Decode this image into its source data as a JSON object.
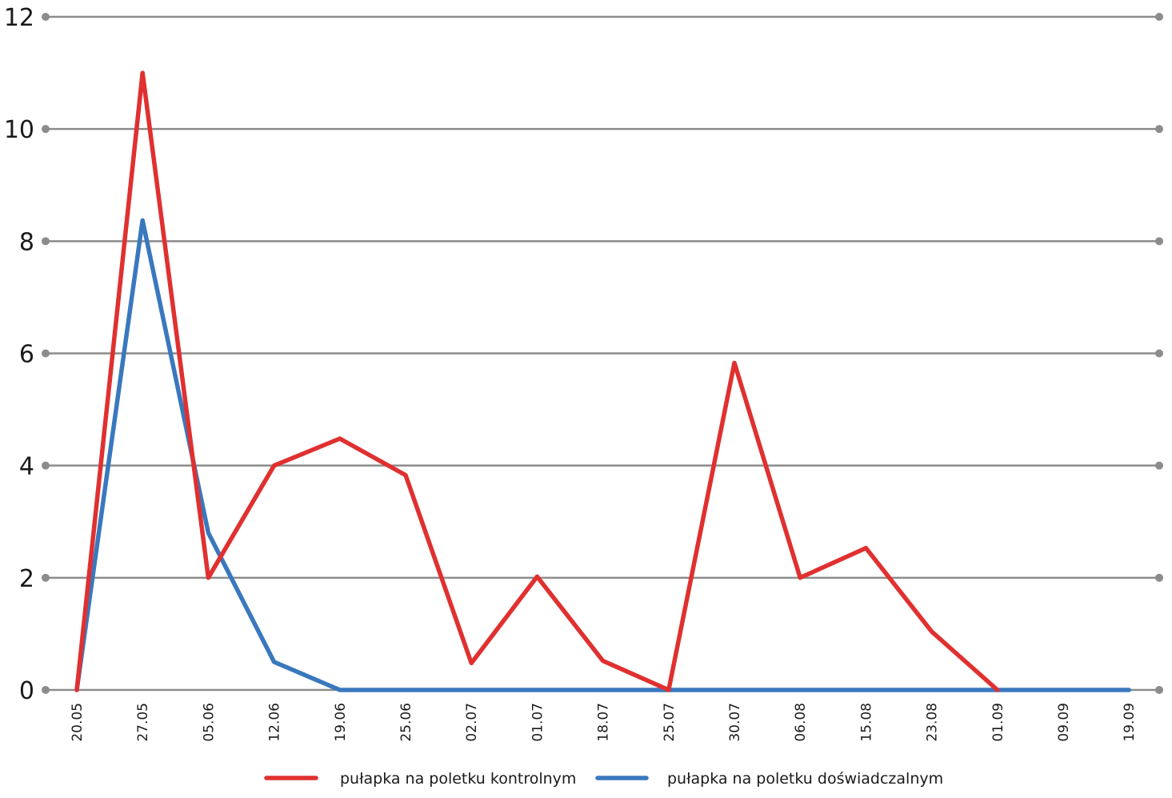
{
  "chart_data": {
    "type": "line",
    "title": "",
    "xlabel": "",
    "ylabel": "",
    "ylim": [
      0,
      12
    ],
    "yticks": [
      "0",
      "2",
      "4",
      "6",
      "8",
      "10",
      "12"
    ],
    "grid": true,
    "legend_position": "bottom",
    "categories": [
      "20.05",
      "27.05",
      "05.06",
      "12.06",
      "19.06",
      "25.06",
      "02.07",
      "01.07",
      "18.07",
      "25.07",
      "30.07",
      "06.08",
      "15.08",
      "23.08",
      "01.09",
      "09.09",
      "19.09"
    ],
    "series": [
      {
        "name": "pułapka na poletku kontrolnym",
        "color": "#e03030",
        "values": [
          0,
          11,
          2,
          4,
          4.48,
          3.83,
          0.48,
          2.02,
          0.52,
          0,
          5.83,
          2,
          2.53,
          1.04,
          0,
          null,
          null
        ]
      },
      {
        "name": "pułapka na poletku doświadczalnym",
        "color": "#3a78be",
        "values": [
          0,
          8.37,
          2.8,
          0.5,
          0,
          0,
          0,
          0,
          0,
          0,
          0,
          0,
          0,
          0,
          0,
          0,
          0
        ]
      }
    ],
    "grid_color": "#8c8c8c"
  }
}
